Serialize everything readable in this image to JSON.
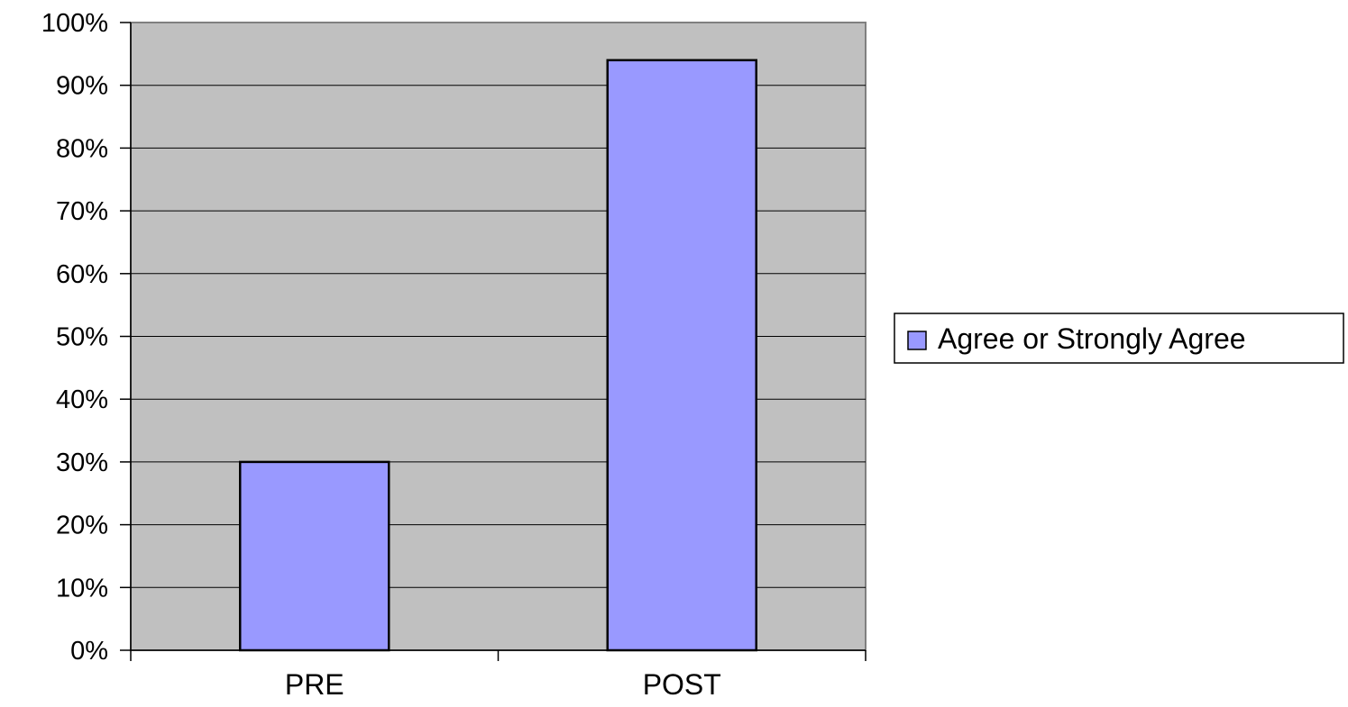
{
  "chart_data": {
    "type": "bar",
    "categories": [
      "PRE",
      "POST"
    ],
    "series": [
      {
        "name": "Agree or Strongly Agree",
        "values": [
          0.3,
          0.94
        ],
        "color": "#9999ff"
      }
    ],
    "ylim": [
      0,
      1
    ],
    "yticks": [
      0,
      0.1,
      0.2,
      0.3,
      0.4,
      0.5,
      0.6,
      0.7,
      0.8,
      0.9,
      1.0
    ],
    "ytick_labels": [
      "0%",
      "10%",
      "20%",
      "30%",
      "40%",
      "50%",
      "60%",
      "70%",
      "80%",
      "90%",
      "100%"
    ],
    "grid": true,
    "legend_position": "right",
    "plot_background": "#c0c0c0",
    "bar_border_color": "#000000",
    "grid_color": "#000000"
  }
}
